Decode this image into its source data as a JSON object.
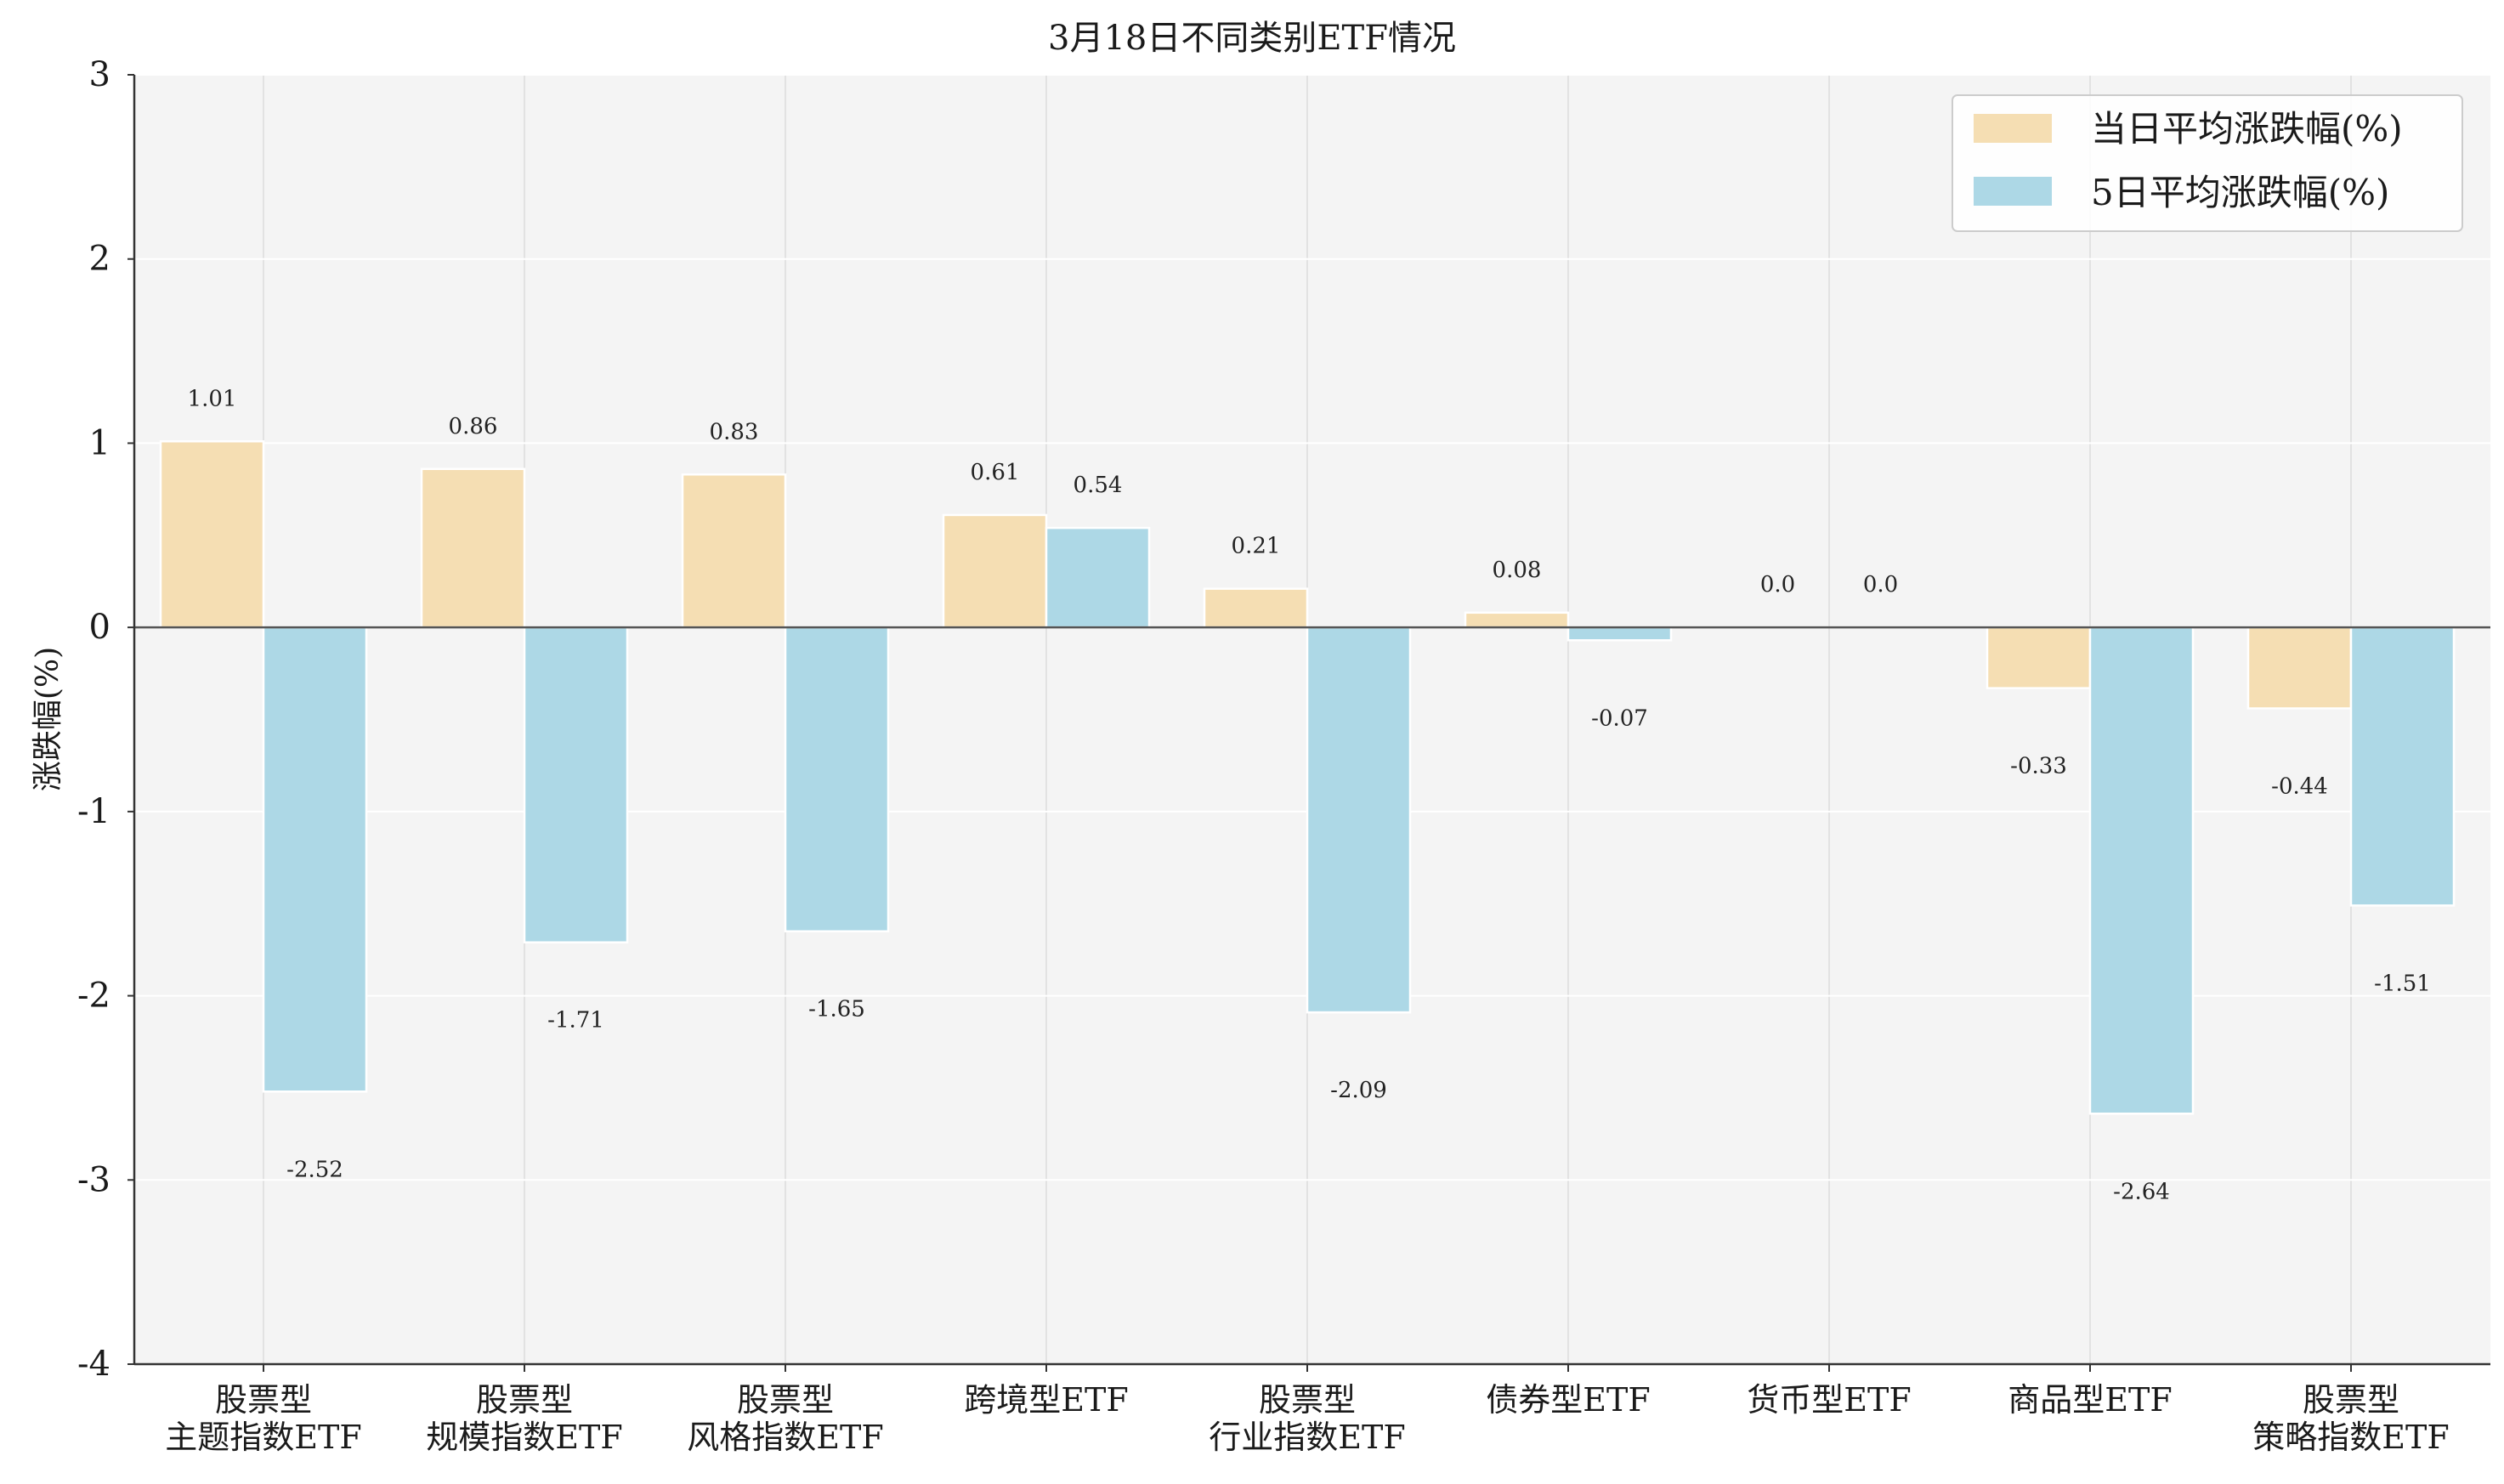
{
  "chart_data": {
    "type": "bar",
    "title": "3月18日不同类别ETF情况",
    "xlabel": "",
    "ylabel": "涨跌幅(%)",
    "ylim": [
      -4,
      3
    ],
    "yticks": [
      "3",
      "2",
      "1",
      "0",
      "-1",
      "-2",
      "-3",
      "-4"
    ],
    "ytick_values": [
      3,
      2,
      1,
      0,
      -1,
      -2,
      -3,
      -4
    ],
    "grid": true,
    "legend_position": "top-right",
    "categories": [
      [
        "股票型",
        "主题指数ETF"
      ],
      [
        "股票型",
        "规模指数ETF"
      ],
      [
        "股票型",
        "风格指数ETF"
      ],
      [
        "跨境型ETF"
      ],
      [
        "股票型",
        "行业指数ETF"
      ],
      [
        "债券型ETF"
      ],
      [
        "货币型ETF"
      ],
      [
        "商品型ETF"
      ],
      [
        "股票型",
        "策略指数ETF"
      ]
    ],
    "series": [
      {
        "name": "当日平均涨跌幅(%)",
        "color": "#F5DEB3",
        "values": [
          1.01,
          0.86,
          0.83,
          0.61,
          0.21,
          0.08,
          0.0,
          -0.33,
          -0.44
        ],
        "labels": [
          "1.01",
          "0.86",
          "0.83",
          "0.61",
          "0.21",
          "0.08",
          "0.0",
          "-0.33",
          "-0.44"
        ]
      },
      {
        "name": "5日平均涨跌幅(%)",
        "color": "#ADD8E6",
        "values": [
          -2.52,
          -1.71,
          -1.65,
          0.54,
          -2.09,
          -0.07,
          0.0,
          -2.64,
          -1.51
        ],
        "labels": [
          "-2.52",
          "-1.71",
          "-1.65",
          "0.54",
          "-2.09",
          "-0.07",
          "0.0",
          "-2.64",
          "-1.51"
        ]
      }
    ]
  }
}
